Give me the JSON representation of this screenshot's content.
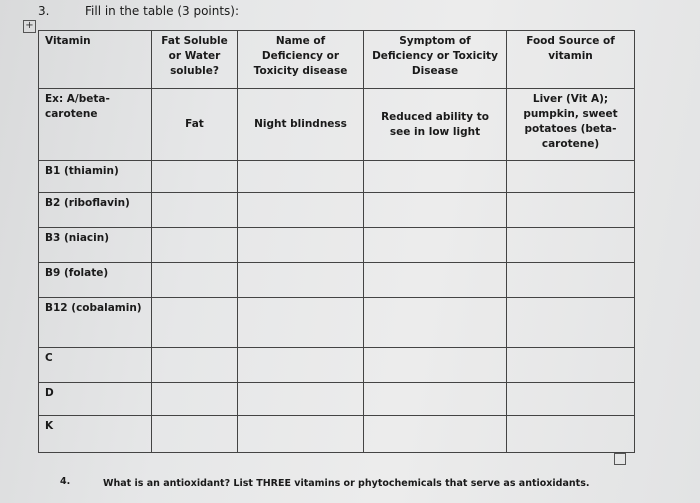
{
  "question3": {
    "number": "3.",
    "text": "Fill in the table (3 points):"
  },
  "table": {
    "headers": [
      "Vitamin",
      "Fat Soluble or Water soluble?",
      "Name of Deficiency or Toxicity disease",
      "Symptom of Deficiency or Toxicity Disease",
      "Food Source of vitamin"
    ],
    "example": {
      "vitamin": "Ex: A/beta-carotene",
      "solubility": "Fat",
      "disease": "Night blindness",
      "symptom": "Reduced ability to see in low light",
      "food": "Liver (Vit A); pumpkin, sweet potatoes (beta-carotene)"
    },
    "rows": [
      "B1 (thiamin)",
      "B2 (riboflavin)",
      "B3 (niacin)",
      "B9 (folate)",
      "B12 (cobalamin)",
      "C",
      "D",
      "K"
    ]
  },
  "question4": {
    "number": "4.",
    "text": "What is an antioxidant? List THREE vitamins or phytochemicals that serve as antioxidants."
  }
}
